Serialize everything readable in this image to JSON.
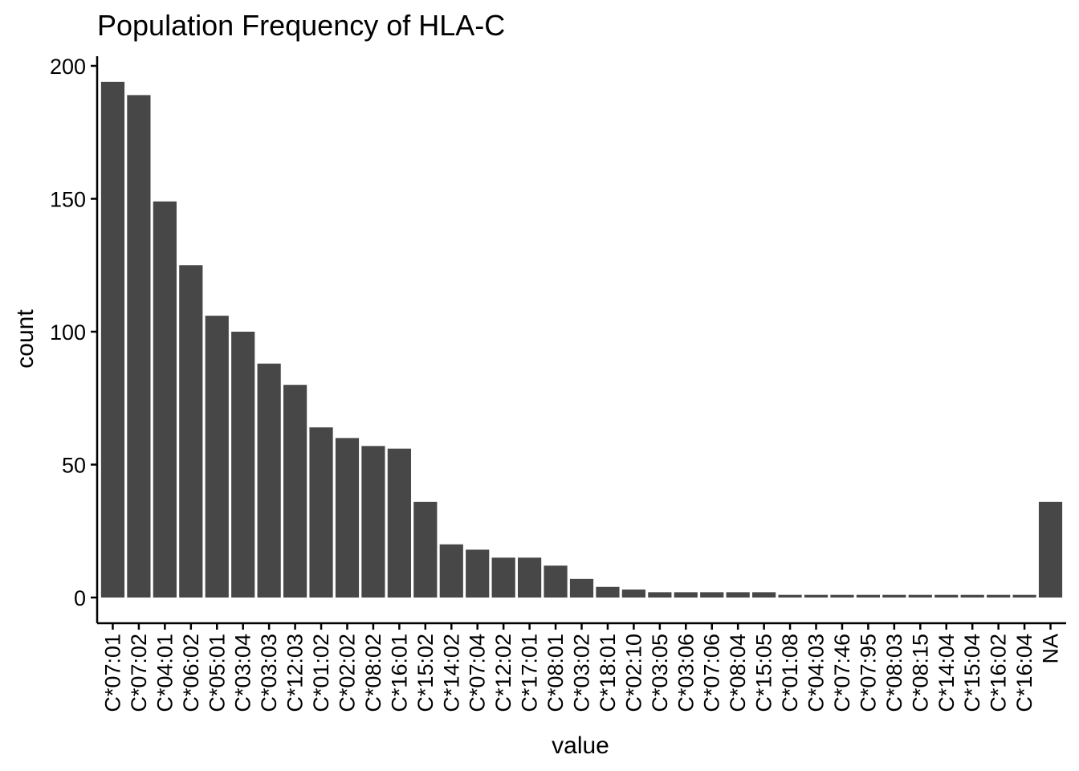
{
  "chart_data": {
    "type": "bar",
    "title": "Population Frequency of HLA-C",
    "xlabel": "value",
    "ylabel": "count",
    "ylim": [
      0,
      200
    ],
    "yticks": [
      0,
      50,
      100,
      150,
      200
    ],
    "grid": false,
    "bar_color": "#474747",
    "categories": [
      "C*07:01",
      "C*07:02",
      "C*04:01",
      "C*06:02",
      "C*05:01",
      "C*03:04",
      "C*03:03",
      "C*12:03",
      "C*01:02",
      "C*02:02",
      "C*08:02",
      "C*16:01",
      "C*15:02",
      "C*14:02",
      "C*07:04",
      "C*12:02",
      "C*17:01",
      "C*08:01",
      "C*03:02",
      "C*18:01",
      "C*02:10",
      "C*03:05",
      "C*03:06",
      "C*07:06",
      "C*08:04",
      "C*15:05",
      "C*01:08",
      "C*04:03",
      "C*07:46",
      "C*07:95",
      "C*08:03",
      "C*08:15",
      "C*14:04",
      "C*15:04",
      "C*16:02",
      "C*16:04",
      "NA"
    ],
    "values": [
      194,
      189,
      149,
      125,
      106,
      100,
      88,
      80,
      64,
      60,
      57,
      56,
      36,
      20,
      18,
      15,
      15,
      12,
      7,
      4,
      3,
      2,
      2,
      2,
      2,
      2,
      1,
      1,
      1,
      1,
      1,
      1,
      1,
      1,
      1,
      1,
      36
    ]
  }
}
